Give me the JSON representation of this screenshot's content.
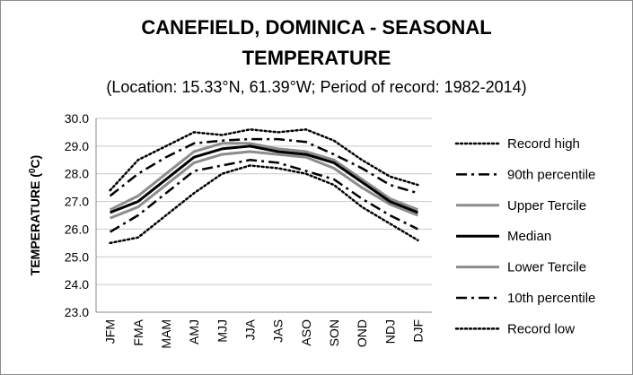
{
  "chart_data": {
    "type": "line",
    "title_line1": "CANEFIELD, DOMINICA - SEASONAL",
    "title_line2": "TEMPERATURE",
    "subtitle": "(Location: 15.33°N, 61.39°W; Period of record: 1982-2014)",
    "ylabel_prefix": "TEMPERATURE (",
    "ylabel_sup": "0",
    "ylabel_suffix": "C)",
    "ylim": [
      23.0,
      30.0
    ],
    "yticks": [
      "23.0",
      "24.0",
      "25.0",
      "26.0",
      "27.0",
      "28.0",
      "29.0",
      "30.0"
    ],
    "categories": [
      "JFM",
      "FMA",
      "MAM",
      "AMJ",
      "MJJ",
      "JJA",
      "JAS",
      "ASO",
      "SON",
      "OND",
      "NDJ",
      "DJF"
    ],
    "grid": true,
    "legend_position": "right",
    "series": [
      {
        "name": "Record high",
        "style": "dotted",
        "color": "#000000",
        "values": [
          27.4,
          28.5,
          29.0,
          29.5,
          29.4,
          29.6,
          29.5,
          29.6,
          29.2,
          28.5,
          27.9,
          27.6
        ]
      },
      {
        "name": "90th percentile",
        "style": "dashdot",
        "color": "#000000",
        "values": [
          27.2,
          28.0,
          28.6,
          29.1,
          29.2,
          29.25,
          29.25,
          29.15,
          28.7,
          28.2,
          27.6,
          27.3
        ]
      },
      {
        "name": "Upper Tercile",
        "style": "solid",
        "color": "#8c8c8c",
        "values": [
          26.7,
          27.2,
          28.0,
          28.8,
          29.1,
          29.1,
          28.9,
          28.8,
          28.5,
          27.8,
          27.1,
          26.7
        ]
      },
      {
        "name": "Median",
        "style": "solid",
        "color": "#000000",
        "values": [
          26.6,
          27.0,
          27.8,
          28.6,
          28.9,
          29.0,
          28.8,
          28.7,
          28.4,
          27.7,
          27.0,
          26.6
        ]
      },
      {
        "name": "Lower Tercile",
        "style": "solid",
        "color": "#8c8c8c",
        "values": [
          26.4,
          26.8,
          27.6,
          28.4,
          28.7,
          28.8,
          28.7,
          28.6,
          28.2,
          27.5,
          26.9,
          26.5
        ]
      },
      {
        "name": "10th percentile",
        "style": "dashdot",
        "color": "#000000",
        "values": [
          25.9,
          26.5,
          27.3,
          28.1,
          28.3,
          28.5,
          28.4,
          28.1,
          27.8,
          27.1,
          26.5,
          26.0
        ]
      },
      {
        "name": "Record low",
        "style": "dotted",
        "color": "#000000",
        "values": [
          25.5,
          25.7,
          26.5,
          27.3,
          28.0,
          28.3,
          28.2,
          28.0,
          27.6,
          26.8,
          26.2,
          25.6
        ]
      }
    ]
  }
}
